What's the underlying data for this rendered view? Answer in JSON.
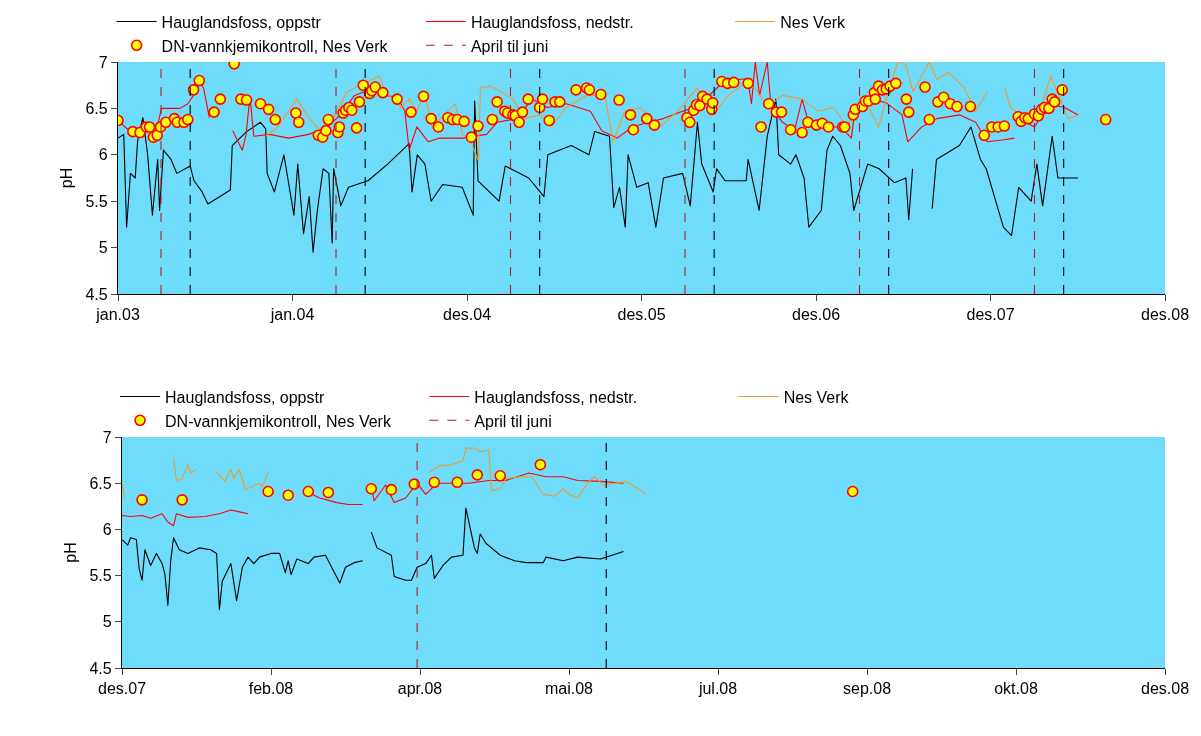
{
  "chart_data": [
    {
      "type": "line",
      "ylabel": "pH",
      "ylim": [
        4.5,
        7
      ],
      "yticks": [
        4.5,
        5,
        5.5,
        6,
        6.5,
        7
      ],
      "legend": "top",
      "xlim": [
        "2003-01-01",
        "2008-12-30"
      ],
      "xticks": [
        {
          "value": "2003-01-01",
          "label": "jan.03"
        },
        {
          "value": "2004-01-01",
          "label": "jan.04"
        },
        {
          "value": "2004-12-31",
          "label": "des.04"
        },
        {
          "value": "2005-12-31",
          "label": "des.05"
        },
        {
          "value": "2006-12-31",
          "label": "des.06"
        },
        {
          "value": "2007-12-31",
          "label": "des.07"
        },
        {
          "value": "2008-12-30",
          "label": "des.08"
        }
      ],
      "series": [
        {
          "name": "Hauglandsfoss, oppstr",
          "color": "#000000",
          "x": [
            "2003-01-01",
            "2003-01-13",
            "2003-01-19",
            "2003-01-27",
            "2003-02-06",
            "2003-02-11",
            "2003-02-22",
            "2003-03-04",
            "2003-03-14",
            "2003-03-25",
            "2003-03-29",
            "2003-04-06",
            "2003-04-22",
            "2003-05-04",
            "2003-06-01",
            "2003-06-09",
            "2003-06-26",
            "2003-07-08",
            "2003-07-24",
            "2003-08-24",
            "2003-08-28",
            "2003-09-27",
            "2003-10-26",
            "2003-11-06",
            "2003-11-09",
            "2003-11-24",
            "2003-12-14",
            "2004-01-04",
            "2004-01-12",
            "2004-01-24",
            "2004-02-05",
            "2004-02-13",
            "2004-02-22",
            "2004-03-05",
            "2004-03-17",
            "2004-03-24",
            "2004-03-27",
            "2004-04-11",
            "2004-04-27",
            "2004-06-07",
            "2004-07-18",
            "2004-09-01",
            "2004-09-07",
            "2004-09-18",
            "2004-10-04",
            "2004-10-17",
            "2004-11-10",
            "2004-12-21",
            "2005-01-13",
            "2005-01-16",
            "2005-01-23",
            "2005-03-08",
            "2005-03-21",
            "2005-05-09",
            "2005-06-10",
            "2005-06-18",
            "2005-08-06",
            "2005-09-12",
            "2005-09-24",
            "2005-10-25",
            "2005-11-03",
            "2005-11-15",
            "2005-11-27",
            "2005-12-03",
            "2005-12-21",
            "2006-01-14",
            "2006-01-30",
            "2006-02-15",
            "2006-03-27",
            "2006-04-12",
            "2006-04-27",
            "2006-05-06",
            "2006-05-30",
            "2006-06-06",
            "2006-06-24",
            "2006-08-07",
            "2006-08-11",
            "2006-09-03",
            "2006-09-20",
            "2006-10-08",
            "2006-10-14",
            "2006-11-08",
            "2006-11-19",
            "2006-12-06",
            "2006-12-16",
            "2007-01-11",
            "2007-01-23",
            "2007-02-04",
            "2007-02-20",
            "2007-03-12",
            "2007-03-20",
            "2007-04-18",
            "2007-05-12",
            "2007-06-13",
            "2007-07-07",
            "2007-07-13",
            "2007-07-21",
            "2007-08-10",
            "2007-08-31",
            "2007-09-09",
            "2007-10-27",
            "2007-11-20",
            "2007-12-10",
            "2007-12-22",
            "2008-01-27",
            "2008-02-13",
            "2008-02-28",
            "2008-03-25",
            "2008-04-06",
            "2008-04-18",
            "2008-05-08",
            "2008-05-20",
            "2008-07-01"
          ],
          "values": [
            6.18,
            6.22,
            5.22,
            5.8,
            5.75,
            6.15,
            6.4,
            6.0,
            5.35,
            5.95,
            5.4,
            6.05,
            5.95,
            5.8,
            5.88,
            5.72,
            5.6,
            5.47,
            5.52,
            5.62,
            6.1,
            6.25,
            6.35,
            6.28,
            5.8,
            5.6,
            6.0,
            5.35,
            5.9,
            5.15,
            5.55,
            4.95,
            5.4,
            5.85,
            5.8,
            5.05,
            5.85,
            5.45,
            5.65,
            5.72,
            5.9,
            6.12,
            5.6,
            6.0,
            5.9,
            5.5,
            5.68,
            5.65,
            5.35,
            6.58,
            5.72,
            5.5,
            5.88,
            5.75,
            5.55,
            6.0,
            6.1,
            6.0,
            6.25,
            6.2,
            5.43,
            5.65,
            5.22,
            6.0,
            5.65,
            5.7,
            5.22,
            5.75,
            5.8,
            5.45,
            6.35,
            5.9,
            5.6,
            5.85,
            5.72,
            5.72,
            5.95,
            5.4,
            6.2,
            6.6,
            6.0,
            5.9,
            6.0,
            5.75,
            5.22,
            5.4,
            6.05,
            6.2,
            6.1,
            5.8,
            5.4,
            5.9,
            5.85,
            5.7,
            5.75,
            5.3,
            5.85,
            null,
            5.42,
            5.95,
            6.1,
            6.3,
            5.95,
            5.85,
            5.22,
            5.13,
            5.65,
            5.5,
            5.9,
            5.45,
            6.2,
            5.75,
            5.75
          ]
        },
        {
          "name": "Hauglandsfoss, nedstr.",
          "color": "#ff0000",
          "x": [
            "2003-01-01",
            "2003-01-20",
            "2003-03-24",
            "2003-04-02",
            "2003-05-11",
            "2003-05-27",
            "2003-06-13",
            "2003-06-21",
            "2003-06-29",
            "2003-07-11",
            "2003-08-01",
            "2003-08-29",
            "2003-09-18",
            "2003-09-26",
            "2003-10-04",
            "2003-10-12",
            "2003-11-14",
            "2003-12-24",
            "2004-02-04",
            "2004-03-14",
            "2004-04-08",
            "2004-05-10",
            "2004-06-19",
            "2004-07-13",
            "2004-08-07",
            "2004-08-23",
            "2004-09-01",
            "2004-09-17",
            "2004-10-11",
            "2004-11-04",
            "2004-12-22",
            "2005-02-10",
            "2005-03-04",
            "2005-04-14",
            "2005-05-16",
            "2005-06-17",
            "2005-07-27",
            "2005-09-15",
            "2005-10-09",
            "2005-11-10",
            "2005-12-12",
            "2006-01-14",
            "2006-02-15",
            "2006-03-17",
            "2006-04-19",
            "2006-05-13",
            "2006-06-07",
            "2006-06-23",
            "2006-08-10",
            "2006-08-18",
            "2006-08-26",
            "2006-09-04",
            "2006-09-20",
            "2006-09-28",
            "2006-10-22",
            "2006-11-16",
            "2006-12-02",
            "2006-12-18",
            "2007-01-19",
            "2007-02-21",
            "2007-03-15",
            "2007-03-23",
            "2007-04-25",
            "2007-05-27",
            "2007-06-29",
            "2007-07-11",
            "2007-08-09",
            "2007-09-10",
            "2007-10-28",
            "2007-11-30",
            "2007-12-24",
            "2008-01-25",
            "2008-02-19",
            "2008-02-23",
            "2008-02-28",
            "2008-04-01",
            "2008-05-01",
            "2008-06-03",
            "2008-07-01"
          ],
          "values": [
            6.37,
            6.28,
            6.3,
            6.5,
            6.5,
            6.55,
            6.68,
            6.78,
            6.72,
            6.4,
            null,
            6.26,
            6.05,
            6.22,
            6.63,
            6.2,
            6.22,
            6.18,
            6.22,
            6.3,
            6.42,
            6.64,
            6.72,
            6.64,
            6.62,
            6.47,
            6.05,
            6.3,
            6.14,
            6.18,
            6.18,
            6.22,
            6.35,
            6.39,
            6.6,
            6.51,
            6.55,
            6.47,
            6.26,
            6.18,
            6.3,
            6.35,
            6.39,
            6.45,
            6.51,
            6.6,
            6.72,
            6.8,
            6.82,
            6.55,
            7.0,
            6.64,
            7.0,
            6.51,
            6.35,
            6.26,
            6.6,
            6.3,
            6.3,
            6.3,
            6.18,
            6.51,
            6.6,
            6.56,
            6.43,
            6.14,
            6.3,
            6.39,
            6.43,
            6.35,
            6.14,
            6.16,
            6.18,
            null,
            6.39,
            6.3,
            6.55,
            6.51,
            6.43
          ]
        },
        {
          "name": "Nes Verk",
          "color": "#eb9c2d",
          "x": [
            "2003-11-06",
            "2003-12-01",
            "2004-01-10",
            "2004-02-04",
            "2004-02-28",
            "2004-03-22",
            "2004-04-24",
            "2004-05-26",
            "2004-07-01",
            "2004-07-13",
            "2004-08-15",
            "2004-09-01",
            "2004-09-17",
            "2004-10-03",
            "2004-10-19",
            "2004-11-21",
            "2004-12-06",
            "2004-12-22",
            "2005-01-08",
            "2005-01-24",
            "2005-01-28",
            "2005-02-18",
            "2005-03-12",
            "2005-04-06",
            "2005-04-30",
            "2005-06-01",
            "2005-06-25",
            "2005-07-27",
            "2005-09-07",
            "2005-10-15",
            "2005-11-02",
            "2005-11-26",
            "2005-12-28",
            "2006-02-07",
            "2006-03-17",
            "2006-04-27",
            "2006-05-29",
            "2006-07-01",
            "2006-08-02",
            "2006-08-26",
            "2006-09-20",
            "2006-10-22",
            "2006-12-02",
            "2007-01-04",
            "2007-02-05",
            "2007-03-07",
            "2007-03-23",
            "2007-04-17",
            "2007-05-11",
            "2007-05-27",
            "2007-06-20",
            "2007-07-07",
            "2007-07-22",
            "2007-08-25",
            "2007-09-10",
            "2007-10-04",
            "2007-11-06",
            "2007-11-30",
            "2007-12-24",
            "2008-01-12",
            "2008-01-30",
            "2008-02-11",
            "2008-03-14",
            "2008-04-15",
            "2008-05-05",
            "2008-05-25",
            "2008-06-10",
            "2008-07-03"
          ],
          "values": [
            6.2,
            6.3,
            6.6,
            6.4,
            6.26,
            6.35,
            6.68,
            6.76,
            6.85,
            6.68,
            6.51,
            6.6,
            6.47,
            6.68,
            6.3,
            6.47,
            6.55,
            6.22,
            6.14,
            5.93,
            6.72,
            6.74,
            6.68,
            6.6,
            6.39,
            6.43,
            6.3,
            6.51,
            6.64,
            6.64,
            6.14,
            6.47,
            6.51,
            6.3,
            6.47,
            6.72,
            6.43,
            6.64,
            6.76,
            6.72,
            6.51,
            6.64,
            6.6,
            6.47,
            6.51,
            6.3,
            6.51,
            6.55,
            6.3,
            6.6,
            7.0,
            6.97,
            6.68,
            7.0,
            6.81,
            6.89,
            6.72,
            6.47,
            6.68,
            null,
            6.72,
            6.51,
            6.39,
            6.51,
            6.85,
            6.6,
            6.39,
            6.43
          ]
        },
        {
          "name": "DN-vannkjemikontroll, Nes Verk",
          "type": "scatter",
          "marker": "circle",
          "color": "#ffff00",
          "x": [
            "2003-01-01",
            "2003-02-01",
            "2003-02-16",
            "2003-03-01",
            "2003-03-08",
            "2003-03-16",
            "2003-03-24",
            "2003-03-31",
            "2003-04-11",
            "2003-04-29",
            "2003-05-05",
            "2003-05-19",
            "2003-05-27",
            "2003-06-08",
            "2003-06-20",
            "2003-07-21",
            "2003-08-03",
            "2003-09-01",
            "2003-09-15",
            "2003-09-27",
            "2003-10-26",
            "2003-11-12",
            "2003-11-26",
            "2004-01-08",
            "2004-01-14",
            "2004-02-24",
            "2004-03-04",
            "2004-03-11",
            "2004-03-16",
            "2004-04-05",
            "2004-04-08",
            "2004-04-16",
            "2004-04-21",
            "2004-04-28",
            "2004-05-04",
            "2004-05-14",
            "2004-05-20",
            "2004-05-28",
            "2004-06-10",
            "2004-06-15",
            "2004-06-22",
            "2004-07-08",
            "2004-08-07",
            "2004-09-05",
            "2004-10-01",
            "2004-10-17",
            "2004-11-01",
            "2004-11-21",
            "2004-12-01",
            "2004-12-11",
            "2004-12-25",
            "2005-01-09",
            "2005-01-23",
            "2005-02-22",
            "2005-03-04",
            "2005-03-20",
            "2005-03-26",
            "2005-04-06",
            "2005-04-11",
            "2005-04-19",
            "2005-04-26",
            "2005-05-08",
            "2005-06-01",
            "2005-06-07",
            "2005-06-21",
            "2005-07-03",
            "2005-07-13",
            "2005-08-16",
            "2005-09-07",
            "2005-09-13",
            "2005-10-07",
            "2005-11-14",
            "2005-12-08",
            "2005-12-14",
            "2006-01-11",
            "2006-01-27",
            "2006-04-05",
            "2006-04-11",
            "2006-04-19",
            "2006-04-25",
            "2006-05-02",
            "2006-05-08",
            "2006-05-17",
            "2006-05-27",
            "2006-05-29",
            "2006-06-17",
            "2006-06-29",
            "2006-07-12",
            "2006-08-11",
            "2006-09-07",
            "2006-09-23",
            "2006-10-09",
            "2006-10-20",
            "2006-11-08",
            "2006-12-02",
            "2006-12-14",
            "2007-01-01",
            "2007-01-13",
            "2007-01-26",
            "2007-02-25",
            "2007-03-01",
            "2007-03-19",
            "2007-03-23",
            "2007-04-07",
            "2007-04-13",
            "2007-04-20",
            "2007-05-02",
            "2007-05-04",
            "2007-05-11",
            "2007-05-19",
            "2007-05-27",
            "2007-06-04",
            "2007-06-16",
            "2007-07-08",
            "2007-07-13",
            "2007-08-16",
            "2007-08-25",
            "2007-09-12",
            "2007-09-24",
            "2007-10-08",
            "2007-10-22",
            "2007-11-19",
            "2007-12-18",
            "2008-01-03",
            "2008-01-16",
            "2008-01-29",
            "2008-02-27",
            "2008-03-04",
            "2008-03-12",
            "2008-03-19",
            "2008-04-01",
            "2008-04-09",
            "2008-04-16",
            "2008-04-22",
            "2008-05-01",
            "2008-05-08",
            "2008-05-13",
            "2008-05-29",
            "2008-08-28"
          ],
          "values": [
            6.37,
            6.25,
            6.24,
            6.3,
            6.3,
            6.19,
            6.21,
            6.3,
            6.35,
            6.39,
            6.35,
            6.35,
            6.38,
            6.7,
            6.8,
            6.46,
            6.6,
            6.98,
            6.6,
            6.59,
            6.55,
            6.49,
            6.38,
            6.45,
            6.35,
            6.21,
            6.19,
            6.26,
            6.38,
            6.24,
            6.3,
            6.45,
            6.48,
            6.51,
            6.48,
            6.29,
            6.57,
            6.75,
            6.66,
            6.69,
            6.73,
            6.67,
            6.6,
            6.46,
            6.63,
            6.39,
            6.3,
            6.4,
            6.38,
            6.38,
            6.36,
            6.19,
            6.31,
            6.38,
            6.57,
            6.47,
            6.45,
            6.43,
            6.42,
            6.35,
            6.46,
            6.6,
            6.51,
            6.6,
            6.37,
            6.57,
            6.57,
            6.7,
            6.72,
            6.7,
            6.65,
            6.59,
            6.43,
            6.27,
            6.39,
            6.32,
            6.4,
            6.35,
            6.48,
            6.54,
            6.53,
            6.63,
            6.6,
            6.49,
            6.56,
            6.79,
            6.77,
            6.78,
            6.77,
            6.3,
            6.55,
            6.46,
            6.46,
            6.27,
            6.24,
            6.35,
            6.32,
            6.34,
            6.3,
            6.3,
            6.3,
            6.43,
            6.49,
            6.52,
            6.58,
            6.58,
            6.67,
            6.6,
            6.74,
            6.7,
            6.71,
            6.74,
            6.77,
            6.6,
            6.46,
            6.73,
            6.38,
            6.57,
            6.62,
            6.55,
            6.52,
            6.52,
            6.21,
            6.3,
            6.3,
            6.31,
            6.41,
            6.36,
            6.4,
            6.39,
            6.44,
            6.42,
            6.49,
            6.51,
            6.5,
            6.6,
            6.57,
            6.7,
            6.38
          ]
        }
      ],
      "ref_lines": [
        {
          "axis": "x",
          "value": "2003-04-01",
          "label": "April til juni",
          "color": "#b02020",
          "line_style": "dashed"
        },
        {
          "axis": "x",
          "value": "2003-06-01",
          "color": "#000000",
          "line_style": "dashed"
        },
        {
          "axis": "x",
          "value": "2004-04-01",
          "color": "#b02020",
          "line_style": "dashed"
        },
        {
          "axis": "x",
          "value": "2004-06-01",
          "color": "#000000",
          "line_style": "dashed"
        },
        {
          "axis": "x",
          "value": "2005-04-01",
          "color": "#b02020",
          "line_style": "dashed"
        },
        {
          "axis": "x",
          "value": "2005-06-01",
          "color": "#000000",
          "line_style": "dashed"
        },
        {
          "axis": "x",
          "value": "2006-04-01",
          "color": "#b02020",
          "line_style": "dashed"
        },
        {
          "axis": "x",
          "value": "2006-06-01",
          "color": "#000000",
          "line_style": "dashed"
        },
        {
          "axis": "x",
          "value": "2007-04-01",
          "color": "#b02020",
          "line_style": "dashed"
        },
        {
          "axis": "x",
          "value": "2007-06-01",
          "color": "#000000",
          "line_style": "dashed"
        },
        {
          "axis": "x",
          "value": "2008-04-01",
          "color": "#b02020",
          "line_style": "dashed"
        },
        {
          "axis": "x",
          "value": "2008-06-01",
          "color": "#000000",
          "line_style": "dashed"
        }
      ]
    },
    {
      "type": "line",
      "ylabel": "pH",
      "ylim": [
        4.5,
        7
      ],
      "yticks": [
        4.5,
        5,
        5.5,
        6,
        6.5,
        7
      ],
      "legend": "top",
      "xlim": [
        "2007-12-20",
        "2008-12-18"
      ],
      "xticks": [
        {
          "value": "2007-12-20",
          "label": "des.07"
        },
        {
          "value": "2008-02-10",
          "label": "feb.08"
        },
        {
          "value": "2008-04-02",
          "label": "apr.08"
        },
        {
          "value": "2008-05-24",
          "label": "mai.08"
        },
        {
          "value": "2008-07-15",
          "label": "jul.08"
        },
        {
          "value": "2008-09-05",
          "label": "sep.08"
        },
        {
          "value": "2008-10-27",
          "label": "okt.08"
        },
        {
          "value": "2008-12-18",
          "label": "des.08"
        }
      ],
      "series": [
        {
          "name": "Hauglandsfoss, oppstr",
          "color": "#000000",
          "x": [
            "2007-12-20",
            "2007-12-22",
            "2007-12-23",
            "2007-12-25",
            "2007-12-26",
            "2007-12-27",
            "2007-12-28",
            "2007-12-30",
            "2008-01-01",
            "2008-01-03",
            "2008-01-04",
            "2008-01-05",
            "2008-01-06",
            "2008-01-07",
            "2008-01-09",
            "2008-01-12",
            "2008-01-16",
            "2008-01-20",
            "2008-01-22",
            "2008-01-23",
            "2008-01-24",
            "2008-01-27",
            "2008-01-29",
            "2008-01-31",
            "2008-02-02",
            "2008-02-04",
            "2008-02-06",
            "2008-02-10",
            "2008-02-13",
            "2008-02-15",
            "2008-02-16",
            "2008-02-17",
            "2008-02-19",
            "2008-02-23",
            "2008-02-25",
            "2008-02-29",
            "2008-03-05",
            "2008-03-07",
            "2008-03-10",
            "2008-03-13",
            "2008-03-15",
            "2008-03-16",
            "2008-03-18",
            "2008-03-23",
            "2008-03-24",
            "2008-03-28",
            "2008-03-30",
            "2008-04-01",
            "2008-04-04",
            "2008-04-06",
            "2008-04-07",
            "2008-04-10",
            "2008-04-13",
            "2008-04-17",
            "2008-04-18",
            "2008-04-21",
            "2008-04-22",
            "2008-04-23",
            "2008-04-25",
            "2008-04-30",
            "2008-05-05",
            "2008-05-09",
            "2008-05-15",
            "2008-05-16",
            "2008-05-22",
            "2008-05-27",
            "2008-06-04",
            "2008-06-08",
            "2008-06-12"
          ],
          "values": [
            5.89,
            5.83,
            5.91,
            5.89,
            5.57,
            5.45,
            5.78,
            5.61,
            5.74,
            5.63,
            5.51,
            5.18,
            5.66,
            5.91,
            5.78,
            5.74,
            5.8,
            5.78,
            5.74,
            5.13,
            5.44,
            5.63,
            5.23,
            5.59,
            5.7,
            5.63,
            5.7,
            5.74,
            5.74,
            5.53,
            5.66,
            5.51,
            5.68,
            5.63,
            5.7,
            5.72,
            5.42,
            5.59,
            5.64,
            5.66,
            null,
            5.97,
            5.8,
            5.72,
            5.49,
            5.45,
            5.45,
            5.59,
            5.63,
            5.72,
            5.47,
            5.61,
            5.7,
            5.72,
            6.23,
            5.8,
            5.74,
            5.95,
            5.85,
            5.72,
            5.66,
            5.64,
            5.64,
            5.7,
            5.66,
            5.7,
            5.68,
            5.72,
            5.76
          ]
        },
        {
          "name": "Hauglandsfoss, nedstr.",
          "color": "#ff0000",
          "x": [
            "2007-12-20",
            "2007-12-23",
            "2007-12-27",
            "2007-12-30",
            "2008-01-03",
            "2008-01-05",
            "2008-01-07",
            "2008-01-08",
            "2008-01-12",
            "2008-01-18",
            "2008-01-23",
            "2008-01-27",
            "2008-01-30",
            "2008-02-02",
            "2008-02-12",
            "2008-02-23",
            "2008-02-27",
            "2008-03-04",
            "2008-03-08",
            "2008-03-13",
            "2008-03-15",
            "2008-03-16",
            "2008-03-17",
            "2008-03-21",
            "2008-03-24",
            "2008-03-28",
            "2008-04-01",
            "2008-04-04",
            "2008-04-08",
            "2008-04-13",
            "2008-04-19",
            "2008-04-26",
            "2008-05-02",
            "2008-05-10",
            "2008-05-16",
            "2008-05-22",
            "2008-05-27",
            "2008-06-04",
            "2008-06-12"
          ],
          "values": [
            6.15,
            6.14,
            6.15,
            6.12,
            6.17,
            6.08,
            6.04,
            6.17,
            6.13,
            6.14,
            6.17,
            6.21,
            6.19,
            6.17,
            null,
            6.4,
            6.34,
            6.29,
            6.27,
            6.27,
            null,
            6.46,
            6.31,
            6.48,
            6.29,
            6.34,
            6.5,
            6.38,
            6.5,
            6.5,
            6.5,
            6.53,
            6.53,
            6.61,
            6.57,
            6.57,
            6.53,
            6.52,
            6.5
          ]
        },
        {
          "name": "Nes Verk",
          "color": "#eb9c2d",
          "x": [
            "2007-12-20",
            "2007-12-21",
            "2008-01-01",
            "2008-01-07",
            "2008-01-08",
            "2008-01-10",
            "2008-01-12",
            "2008-01-13",
            "2008-01-15",
            "2008-01-18",
            "2008-01-22",
            "2008-01-25",
            "2008-01-27",
            "2008-01-28",
            "2008-01-30",
            "2008-02-01",
            "2008-02-03",
            "2008-02-06",
            "2008-02-07",
            "2008-02-09",
            "2008-03-01",
            "2008-04-05",
            "2008-04-09",
            "2008-04-13",
            "2008-04-17",
            "2008-04-18",
            "2008-04-21",
            "2008-04-23",
            "2008-04-26",
            "2008-04-27",
            "2008-04-30",
            "2008-05-02",
            "2008-05-07",
            "2008-05-11",
            "2008-05-15",
            "2008-05-19",
            "2008-05-22",
            "2008-05-24",
            "2008-05-27",
            "2008-05-31",
            "2008-06-02",
            "2008-06-05",
            "2008-06-09",
            "2008-06-13",
            "2008-06-17",
            "2008-06-20"
          ],
          "values": [
            6.5,
            6.34,
            null,
            6.77,
            6.53,
            6.55,
            6.7,
            6.61,
            6.65,
            null,
            6.62,
            6.52,
            6.65,
            6.55,
            6.65,
            6.43,
            6.46,
            6.5,
            6.46,
            6.62,
            null,
            6.61,
            6.69,
            6.7,
            6.74,
            6.88,
            6.88,
            6.84,
            6.86,
            6.42,
            6.44,
            6.55,
            6.57,
            6.57,
            6.38,
            6.36,
            6.44,
            6.38,
            6.34,
            6.52,
            6.57,
            6.48,
            6.5,
            6.52,
            6.44,
            6.38
          ]
        },
        {
          "name": "DN-vannkjemikontroll, Nes Verk",
          "type": "scatter",
          "marker": "circle",
          "color": "#ffff00",
          "x": [
            "2007-12-27",
            "2008-01-10",
            "2008-02-09",
            "2008-02-16",
            "2008-02-23",
            "2008-03-01",
            "2008-03-16",
            "2008-03-23",
            "2008-03-31",
            "2008-04-07",
            "2008-04-15",
            "2008-04-22",
            "2008-04-30",
            "2008-05-14",
            "2008-08-31"
          ],
          "values": [
            6.32,
            6.32,
            6.41,
            6.37,
            6.41,
            6.4,
            6.44,
            6.43,
            6.49,
            6.51,
            6.51,
            6.59,
            6.58,
            6.7,
            6.41
          ]
        }
      ],
      "ref_lines": [
        {
          "axis": "x",
          "value": "2008-04-01",
          "label": "April til juni",
          "color": "#b02020",
          "line_style": "dashed"
        },
        {
          "axis": "x",
          "value": "2008-06-06",
          "color": "#000000",
          "line_style": "dashed"
        }
      ]
    }
  ]
}
